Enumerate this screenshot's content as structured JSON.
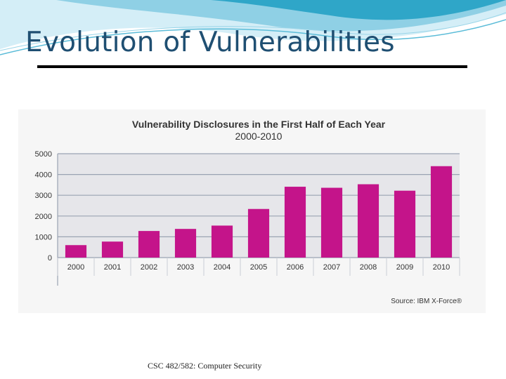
{
  "slide": {
    "title": "Evolution of Vulnerabilities",
    "footer": "CSC 482/582: Computer Security"
  },
  "colors": {
    "title": "#1f4f72",
    "bar": "#c4148a",
    "grid": "#9aa3b2",
    "plot_background": "#e6e6ea",
    "wave_dark": "#2fa6c8",
    "wave_light": "#bfe6f2"
  },
  "chart_data": {
    "type": "bar",
    "title": "Vulnerability Disclosures in the First Half of Each Year",
    "subtitle": "2000-2010",
    "categories": [
      "2000",
      "2001",
      "2002",
      "2003",
      "2004",
      "2005",
      "2006",
      "2007",
      "2008",
      "2009",
      "2010"
    ],
    "values": [
      600,
      770,
      1280,
      1380,
      1540,
      2340,
      3410,
      3360,
      3530,
      3220,
      4400
    ],
    "yticks": [
      "0",
      "1000",
      "2000",
      "3000",
      "4000",
      "5000"
    ],
    "ylim": [
      0,
      5000
    ],
    "xlabel": "",
    "ylabel": "",
    "grid": true,
    "source": "Source: IBM X-Force®"
  }
}
